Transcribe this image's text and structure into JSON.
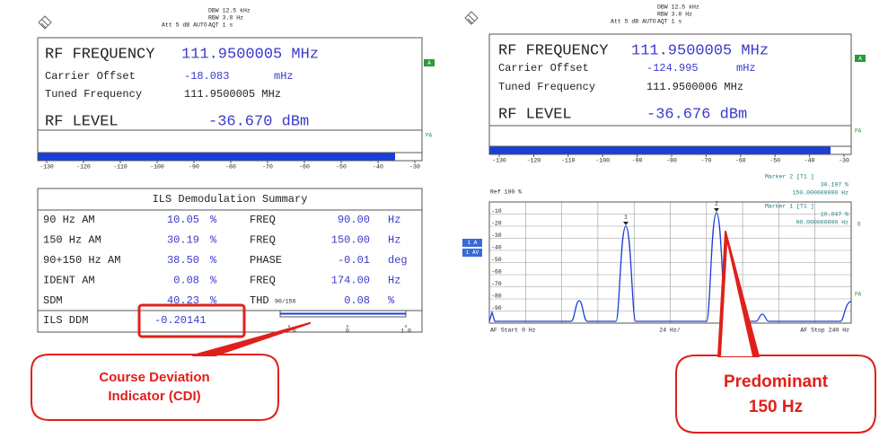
{
  "left": {
    "header": {
      "dbw": "DBW 12.5 kHz",
      "rbw": "RBW 3.8 Hz",
      "att": "Att  5 dB AUTO",
      "aqt": "AQT 1 s"
    },
    "rf_frequency_label": "RF FREQUENCY",
    "rf_frequency_value": "111.9500005 MHz",
    "carrier_offset_label": "Carrier Offset",
    "carrier_offset_value": "-18.083",
    "carrier_offset_unit": "mHz",
    "tuned_frequency_label": "Tuned Frequency",
    "tuned_frequency_value": "111.9500005 MHz",
    "rf_level_label": "RF LEVEL",
    "rf_level_value": "-36.670 dBm",
    "indicator": "A",
    "pa": "PA",
    "scale": [
      "-130",
      "-120",
      "-110",
      "-100",
      "-90",
      "-80",
      "-70",
      "-60",
      "-50",
      "-40",
      "-30"
    ],
    "summary": {
      "title": "ILS Demodulation Summary",
      "rows": [
        [
          "90 Hz AM",
          "10.05",
          "%",
          "FREQ",
          "90.00",
          "Hz"
        ],
        [
          "150 Hz AM",
          "30.19",
          "%",
          "FREQ",
          "150.00",
          "Hz"
        ],
        [
          "90+150 Hz AM",
          "38.50",
          "%",
          "PHASE",
          "-0.01",
          "deg"
        ],
        [
          "IDENT AM",
          "0.08",
          "%",
          "FREQ",
          "174.00",
          "Hz"
        ],
        [
          "SDM",
          "40.23",
          "%",
          "THD",
          "0.08",
          "%"
        ]
      ],
      "thd_subscript": "90/150",
      "ddm_label": "ILS DDM",
      "ddm_value": "-0.20141",
      "ddm_scale": [
        "-1.0",
        "0",
        "1.0"
      ]
    }
  },
  "right": {
    "header": {
      "dbw": "DBW 12.5 kHz",
      "rbw": "RBW 3.8 Hz",
      "att": "Att  5 dB AUTO",
      "aqt": "AQT 1 s"
    },
    "rf_frequency_label": "RF FREQUENCY",
    "rf_frequency_value": "111.9500005 MHz",
    "carrier_offset_label": "Carrier Offset",
    "carrier_offset_value": "-124.995",
    "carrier_offset_unit": "mHz",
    "tuned_frequency_label": "Tuned Frequency",
    "tuned_frequency_value": "111.9500006 MHz",
    "rf_level_label": "RF LEVEL",
    "rf_level_value": "-36.676 dBm",
    "indicator": "A",
    "pa": "PA",
    "scale": [
      "-130",
      "-120",
      "-110",
      "-100",
      "-90",
      "-80",
      "-70",
      "-60",
      "-50",
      "-40",
      "-30"
    ],
    "spectrum": {
      "ref": "Ref  100 %",
      "marker2": [
        "Marker 2 [T1 ]",
        "30.197 %",
        "150.000000000 Hz"
      ],
      "marker1": [
        "Marker 1 [T1 ]",
        "10.047 %",
        "90.000000000 Hz"
      ],
      "y_labels": [
        "-10",
        "-20",
        "-30",
        "-40",
        "-50",
        "-60",
        "-70",
        "-80",
        "-90"
      ],
      "peak_labels": [
        "1",
        "2"
      ],
      "side_labels": [
        "1 A",
        "1 AV"
      ],
      "side_indicator": "B",
      "pa": "PA",
      "start": "AF Start 0 Hz",
      "span": "24 Hz/",
      "stop": "AF Stop 240 Hz"
    }
  },
  "callouts": {
    "left": [
      "Course Deviation",
      "Indicator (CDI)"
    ],
    "right": [
      "Predominant",
      "150 Hz"
    ]
  }
}
